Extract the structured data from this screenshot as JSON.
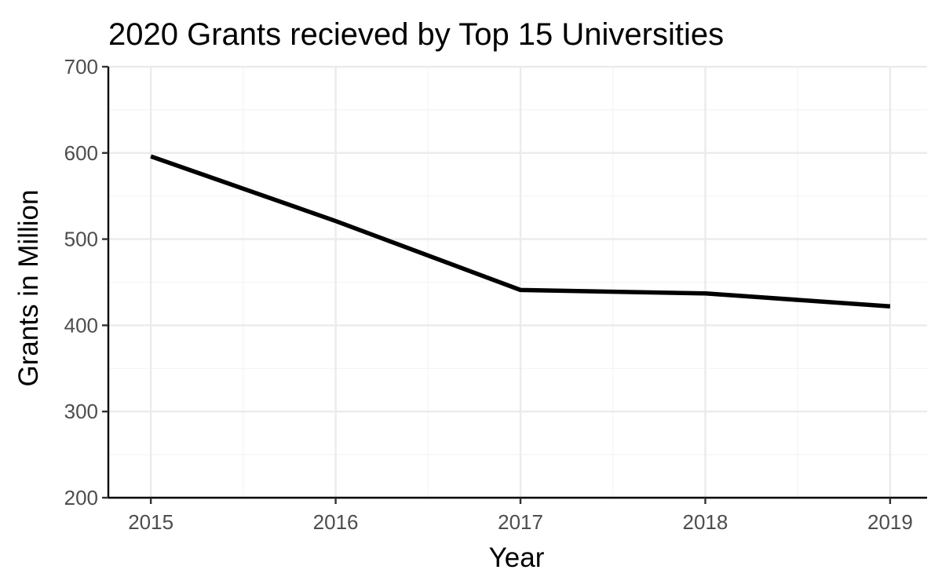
{
  "chart_data": {
    "type": "line",
    "title": "2020 Grants recieved by Top 15 Universities",
    "xlabel": "Year",
    "ylabel": "Grants in Million",
    "x": [
      2015,
      2016,
      2017,
      2018,
      2019
    ],
    "series": [
      {
        "name": "Grants",
        "values": [
          596,
          521,
          441,
          437,
          422
        ]
      }
    ],
    "xlim": [
      2014.77,
      2019.2
    ],
    "ylim": [
      200,
      700
    ],
    "y_ticks": [
      200,
      300,
      400,
      500,
      600,
      700
    ],
    "x_ticks": [
      2015,
      2016,
      2017,
      2018,
      2019
    ],
    "grid": true,
    "legend": "none",
    "colors": {
      "line": "#000000",
      "grid_major": "#ebebeb",
      "grid_minor": "#f4f4f4",
      "axis": "#000000",
      "tick_text": "#4d4d4d"
    }
  }
}
